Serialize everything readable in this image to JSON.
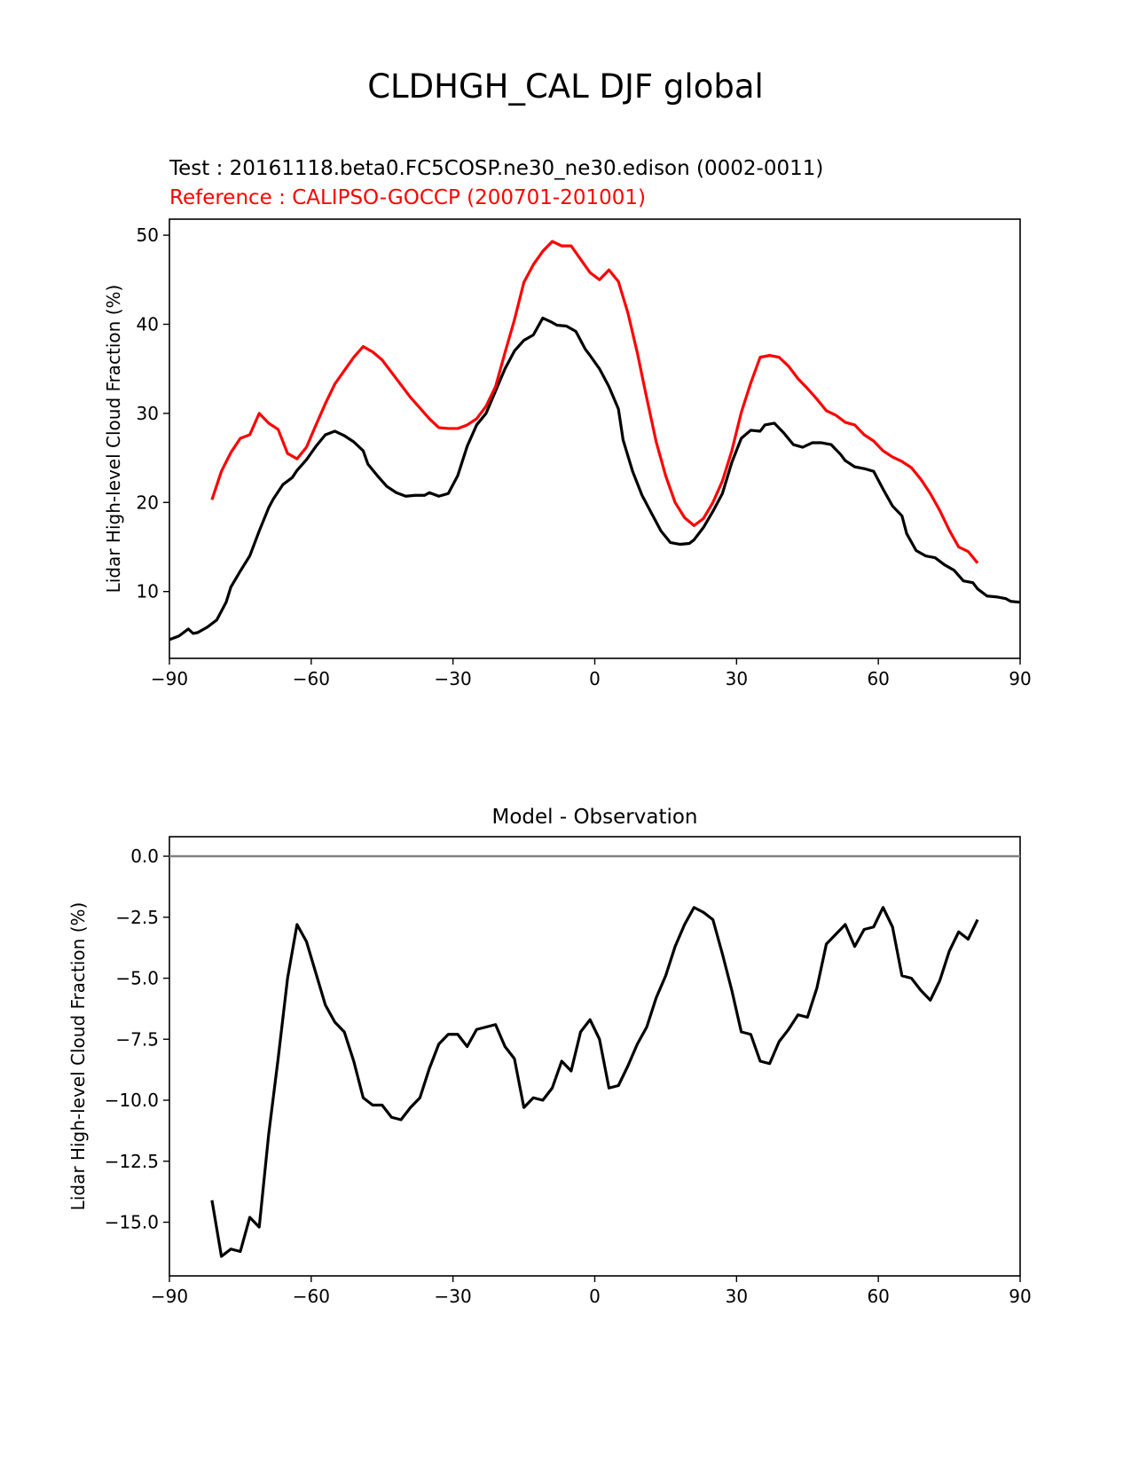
{
  "figure": {
    "title": "CLDHGH_CAL DJF global",
    "test_label": "Test : 20161118.beta0.FC5COSP.ne30_ne30.edison (0002-0011)",
    "reference_label": "Reference : CALIPSO-GOCCP (200701-201001)",
    "colors": {
      "test": "#000000",
      "reference": "#ff0000",
      "zero_line": "#808080",
      "axes": "#000000"
    }
  },
  "chart_data": [
    {
      "type": "line",
      "title": "",
      "xlabel": "",
      "ylabel": "Lidar High-level Cloud Fraction (%)",
      "xlim": [
        -90,
        90
      ],
      "ylim": [
        2.5,
        51.8
      ],
      "xticks": [
        -90,
        -60,
        -30,
        0,
        30,
        60,
        90
      ],
      "xtick_labels": [
        "−90",
        "−60",
        "−30",
        "0",
        "30",
        "60",
        "90"
      ],
      "yticks": [
        10,
        20,
        30,
        40,
        50
      ],
      "ytick_labels": [
        "10",
        "20",
        "30",
        "40",
        "50"
      ],
      "series": [
        {
          "name": "Test",
          "color": "#000000",
          "x": [
            -90,
            -88,
            -86,
            -85,
            -84,
            -82,
            -80,
            -78,
            -77,
            -75,
            -73,
            -71,
            -69,
            -68,
            -66,
            -64,
            -63,
            -61,
            -59,
            -57,
            -55,
            -53,
            -51,
            -49,
            -48,
            -46,
            -44,
            -42,
            -40,
            -38,
            -36,
            -35,
            -33,
            -31,
            -29,
            -27,
            -25,
            -23,
            -21,
            -19,
            -17,
            -15,
            -13,
            -11,
            -9,
            -8,
            -6,
            -4,
            -2,
            -1,
            1,
            3,
            5,
            6,
            8,
            10,
            12,
            14,
            16,
            18,
            20,
            21,
            23,
            25,
            27,
            29,
            31,
            33,
            35,
            36,
            38,
            40,
            42,
            44,
            46,
            48,
            50,
            52,
            53,
            55,
            57,
            59,
            61,
            63,
            65,
            66,
            68,
            70,
            72,
            74,
            76,
            78,
            80,
            81,
            83,
            85,
            87,
            88,
            90
          ],
          "y": [
            4.6,
            5.0,
            5.8,
            5.3,
            5.4,
            6.0,
            6.8,
            8.8,
            10.5,
            12.3,
            14.0,
            16.8,
            19.4,
            20.4,
            22.0,
            22.8,
            23.6,
            24.8,
            26.3,
            27.6,
            28.0,
            27.5,
            26.8,
            25.8,
            24.3,
            23.0,
            21.8,
            21.1,
            20.7,
            20.8,
            20.8,
            21.1,
            20.7,
            21.0,
            23.0,
            26.3,
            28.7,
            30.0,
            32.5,
            35.0,
            37.0,
            38.2,
            38.8,
            40.7,
            40.2,
            39.9,
            39.8,
            39.2,
            37.2,
            36.5,
            35.0,
            33.0,
            30.5,
            27.0,
            23.5,
            20.8,
            18.8,
            16.8,
            15.5,
            15.3,
            15.4,
            15.8,
            17.2,
            19.0,
            21.0,
            24.5,
            27.2,
            28.1,
            28.0,
            28.7,
            28.9,
            27.8,
            26.5,
            26.2,
            26.7,
            26.7,
            26.5,
            25.4,
            24.7,
            24.0,
            23.8,
            23.5,
            21.5,
            19.6,
            18.5,
            16.5,
            14.6,
            14.0,
            13.8,
            13.0,
            12.4,
            11.2,
            11.0,
            10.3,
            9.5,
            9.4,
            9.2,
            8.9,
            8.8
          ]
        },
        {
          "name": "Reference",
          "color": "#ff0000",
          "x": [
            -81,
            -79,
            -77,
            -75,
            -73,
            -71,
            -69,
            -67,
            -65,
            -63,
            -61,
            -59,
            -57,
            -55,
            -53,
            -51,
            -49,
            -47,
            -45,
            -43,
            -41,
            -39,
            -37,
            -35,
            -33,
            -31,
            -29,
            -27,
            -25,
            -23,
            -21,
            -19,
            -17,
            -15,
            -13,
            -11,
            -9,
            -7,
            -5,
            -3,
            -1,
            1,
            3,
            5,
            7,
            9,
            11,
            13,
            15,
            17,
            19,
            21,
            23,
            25,
            27,
            29,
            31,
            33,
            35,
            37,
            39,
            41,
            43,
            45,
            47,
            49,
            51,
            53,
            55,
            57,
            59,
            61,
            63,
            65,
            67,
            69,
            71,
            73,
            75,
            77,
            79,
            81
          ],
          "y": [
            20.3,
            23.5,
            25.6,
            27.2,
            27.6,
            30.0,
            28.9,
            28.2,
            25.5,
            24.9,
            26.2,
            28.7,
            31.1,
            33.3,
            34.8,
            36.3,
            37.5,
            36.9,
            36.0,
            34.6,
            33.2,
            31.8,
            30.6,
            29.4,
            28.4,
            28.3,
            28.3,
            28.7,
            29.4,
            30.8,
            33.0,
            36.8,
            40.5,
            44.7,
            46.7,
            48.2,
            49.3,
            48.8,
            48.8,
            47.3,
            45.8,
            45.0,
            46.1,
            44.8,
            41.3,
            36.8,
            31.7,
            26.8,
            23.0,
            20.0,
            18.3,
            17.4,
            18.2,
            20.0,
            22.4,
            25.8,
            30.1,
            33.4,
            36.3,
            36.5,
            36.3,
            35.3,
            33.9,
            32.8,
            31.6,
            30.3,
            29.8,
            29.0,
            28.7,
            27.6,
            26.9,
            25.8,
            25.1,
            24.6,
            23.9,
            22.6,
            21.0,
            19.1,
            16.9,
            15.0,
            14.5,
            13.2
          ]
        }
      ]
    },
    {
      "type": "line",
      "title": "Model - Observation",
      "xlabel": "",
      "ylabel": "Lidar High-level Cloud Fraction (%)",
      "xlim": [
        -90,
        90
      ],
      "ylim": [
        -17.2,
        0.8
      ],
      "xticks": [
        -90,
        -60,
        -30,
        0,
        30,
        60,
        90
      ],
      "xtick_labels": [
        "−90",
        "−60",
        "−30",
        "0",
        "30",
        "60",
        "90"
      ],
      "yticks": [
        0,
        -2.5,
        -5,
        -7.5,
        -10,
        -12.5,
        -15
      ],
      "ytick_labels": [
        "0.0",
        "−2.5",
        "−5.0",
        "−7.5",
        "−10.0",
        "−12.5",
        "−15.0"
      ],
      "reference_line": 0,
      "series": [
        {
          "name": "Model - Observation",
          "color": "#000000",
          "x": [
            -81,
            -79,
            -77,
            -75,
            -73,
            -71,
            -69,
            -67,
            -65,
            -63,
            -61,
            -59,
            -57,
            -55,
            -53,
            -51,
            -49,
            -47,
            -45,
            -43,
            -41,
            -39,
            -37,
            -35,
            -33,
            -31,
            -29,
            -27,
            -25,
            -23,
            -21,
            -19,
            -17,
            -15,
            -13,
            -11,
            -9,
            -7,
            -5,
            -3,
            -1,
            1,
            3,
            5,
            7,
            9,
            11,
            13,
            15,
            17,
            19,
            21,
            23,
            25,
            27,
            29,
            31,
            33,
            35,
            37,
            39,
            41,
            43,
            45,
            47,
            49,
            51,
            53,
            55,
            57,
            59,
            61,
            63,
            65,
            67,
            69,
            71,
            73,
            75,
            77,
            79,
            81
          ],
          "y": [
            -14.1,
            -16.4,
            -16.1,
            -16.2,
            -14.8,
            -15.2,
            -11.4,
            -8.3,
            -5.0,
            -2.8,
            -3.5,
            -4.8,
            -6.1,
            -6.8,
            -7.2,
            -8.4,
            -9.9,
            -10.2,
            -10.2,
            -10.7,
            -10.8,
            -10.3,
            -9.9,
            -8.7,
            -7.7,
            -7.3,
            -7.3,
            -7.8,
            -7.1,
            -7.0,
            -6.9,
            -7.8,
            -8.3,
            -10.3,
            -9.9,
            -10.0,
            -9.5,
            -8.4,
            -8.8,
            -7.2,
            -6.7,
            -7.5,
            -9.5,
            -9.4,
            -8.6,
            -7.7,
            -7.0,
            -5.8,
            -4.9,
            -3.7,
            -2.8,
            -2.1,
            -2.3,
            -2.6,
            -4.0,
            -5.5,
            -7.2,
            -7.3,
            -8.4,
            -8.5,
            -7.6,
            -7.1,
            -6.5,
            -6.6,
            -5.4,
            -3.6,
            -3.2,
            -2.8,
            -3.7,
            -3.0,
            -2.9,
            -2.1,
            -2.9,
            -4.9,
            -5.0,
            -5.5,
            -5.9,
            -5.1,
            -3.9,
            -3.1,
            -3.4,
            -2.6
          ]
        }
      ]
    }
  ]
}
